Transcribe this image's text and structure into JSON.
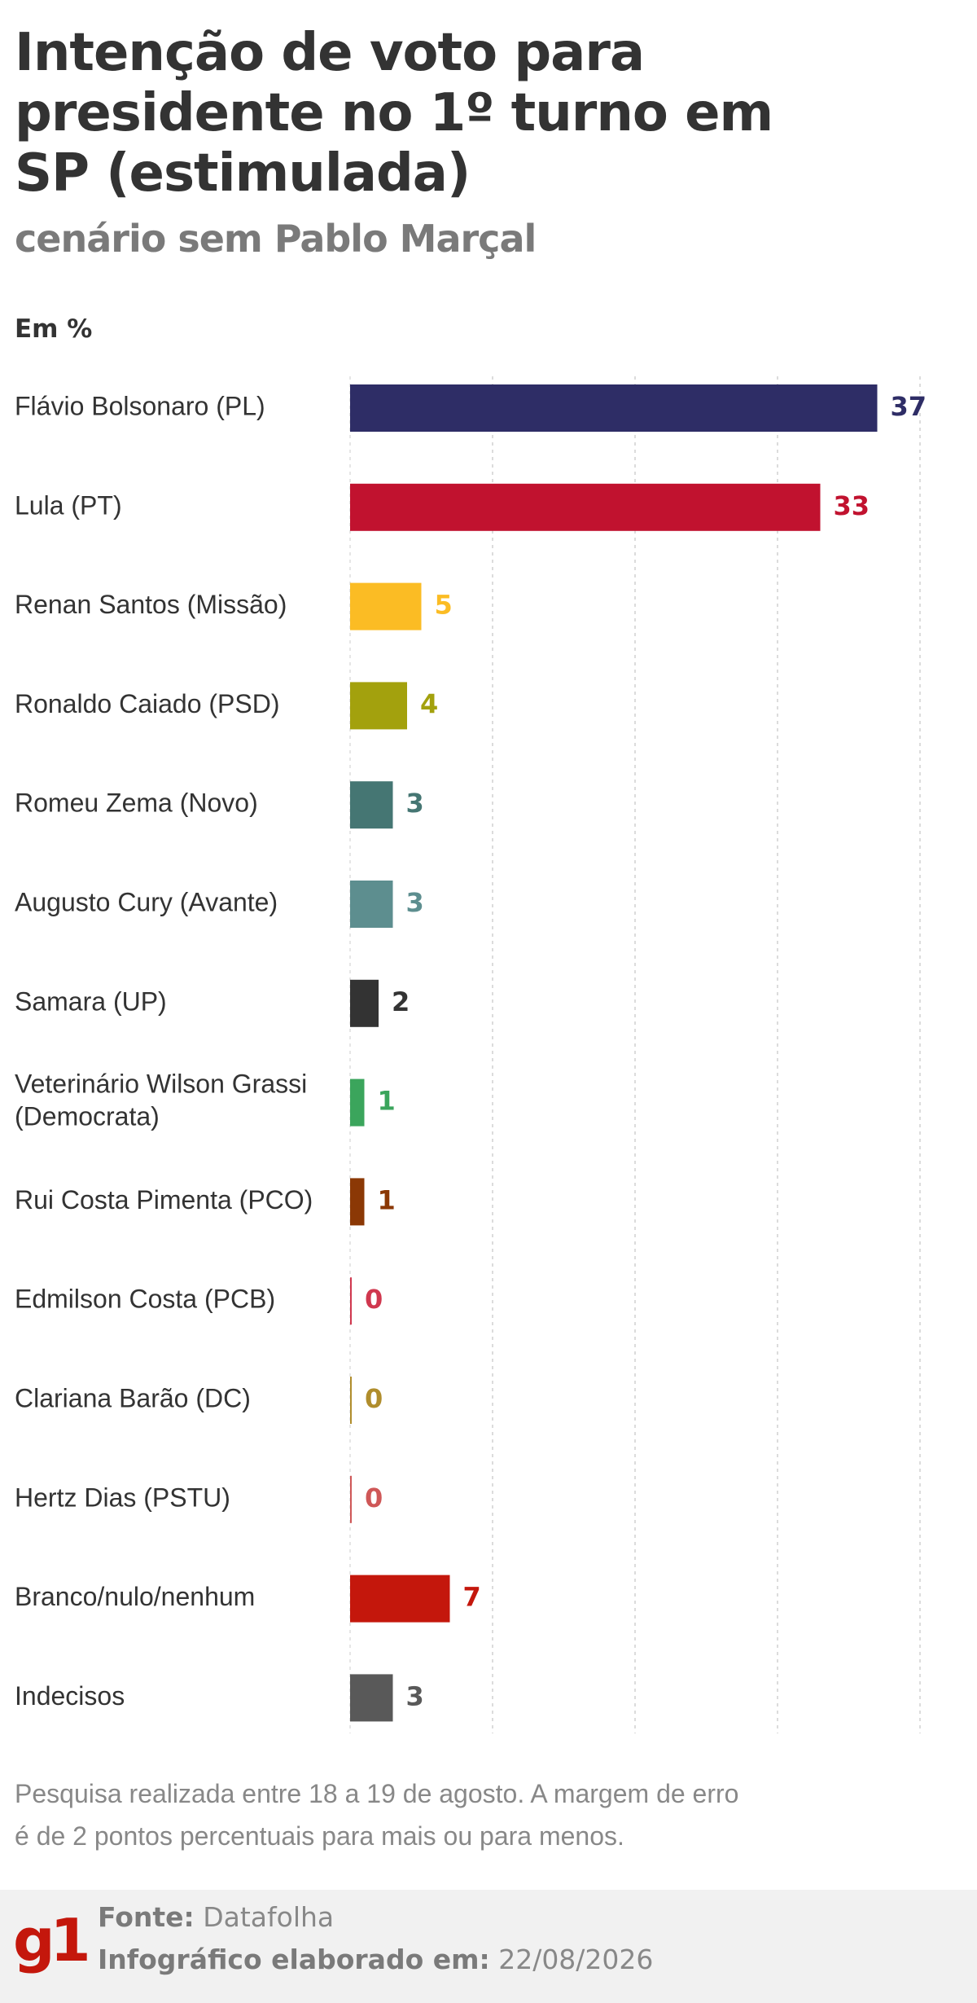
{
  "header": {
    "title": "Intenção de voto para presidente no 1º turno em SP (estimulada)",
    "subtitle": "cenário sem Pablo Marçal",
    "unit_label": "Em %"
  },
  "chart_data": {
    "type": "bar",
    "orientation": "horizontal",
    "title": "Intenção de voto para presidente no 1º turno em SP (estimulada)",
    "subtitle": "cenário sem Pablo Marçal",
    "xlabel": "",
    "ylabel": "",
    "unit": "Em %",
    "xlim": [
      0,
      40
    ],
    "grid": true,
    "categories": [
      "Flávio Bolsonaro (PL)",
      "Lula (PT)",
      "Renan Santos (Missão)",
      "Ronaldo Caiado (PSD)",
      "Romeu Zema (Novo)",
      "Augusto Cury (Avante)",
      "Samara (UP)",
      "Veterinário Wilson Grassi (Democrata)",
      "Rui Costa Pimenta (PCO)",
      "Edmilson Costa (PCB)",
      "Clariana Barão (DC)",
      "Hertz Dias (PSTU)",
      "Branco/nulo/nenhum",
      "Indecisos"
    ],
    "values": [
      37,
      33,
      5,
      4,
      3,
      3,
      2,
      1,
      1,
      0,
      0,
      0,
      7,
      3
    ],
    "colors": [
      "#2e2d66",
      "#c1122f",
      "#fbbc24",
      "#a3a10d",
      "#457673",
      "#5d8e8f",
      "#333333",
      "#3ba55c",
      "#8b3805",
      "#d0374e",
      "#b08d2c",
      "#cf5757",
      "#c4170c",
      "#595959"
    ]
  },
  "note": "Pesquisa realizada entre 18 a 19 de agosto. A margem de erro é de 2 pontos percentuais para mais ou para menos.",
  "footer": {
    "logo": "g1",
    "source_label": "Fonte:",
    "source_value": "Datafolha",
    "date_label": "Infográfico elaborado em:",
    "date_value": "22/08/2026"
  }
}
